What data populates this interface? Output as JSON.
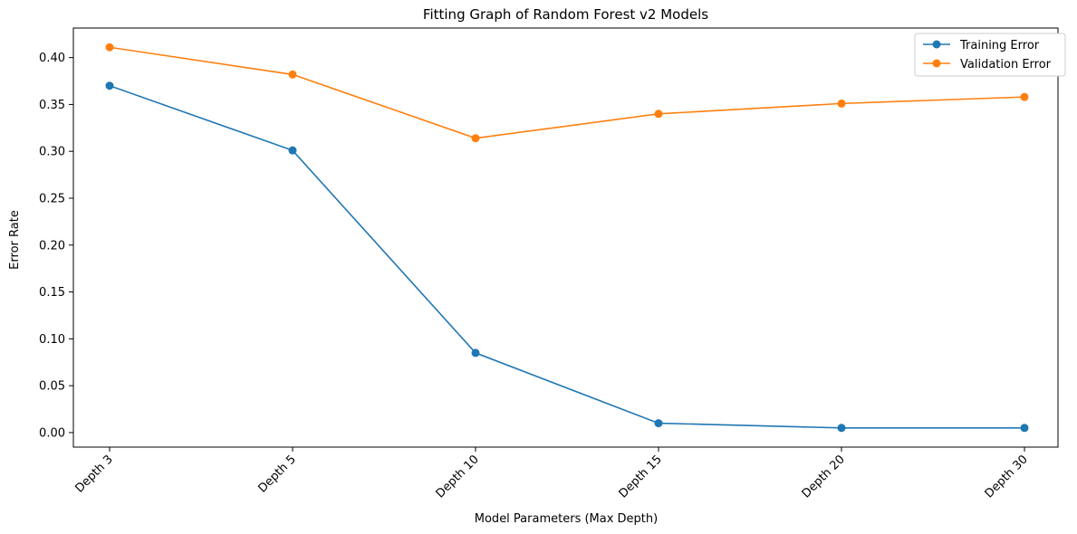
{
  "chart_data": {
    "type": "line",
    "title": "Fitting Graph of Random Forest v2 Models",
    "xlabel": "Model Parameters (Max Depth)",
    "ylabel": "Error Rate",
    "categories": [
      "Depth 3",
      "Depth 5",
      "Depth 10",
      "Depth 15",
      "Depth 20",
      "Depth 30"
    ],
    "ylim": [
      -0.0155,
      0.4315
    ],
    "yticks": [
      "0.00",
      "0.05",
      "0.10",
      "0.15",
      "0.20",
      "0.25",
      "0.30",
      "0.35",
      "0.40"
    ],
    "grid": false,
    "legend_position": "top-right",
    "series": [
      {
        "name": "Training Error",
        "color": "#1f77b4",
        "marker": "circle",
        "values": [
          0.37,
          0.301,
          0.085,
          0.01,
          0.005,
          0.005
        ]
      },
      {
        "name": "Validation Error",
        "color": "#ff7f0e",
        "marker": "circle",
        "values": [
          0.411,
          0.382,
          0.314,
          0.34,
          0.351,
          0.358
        ]
      }
    ]
  }
}
